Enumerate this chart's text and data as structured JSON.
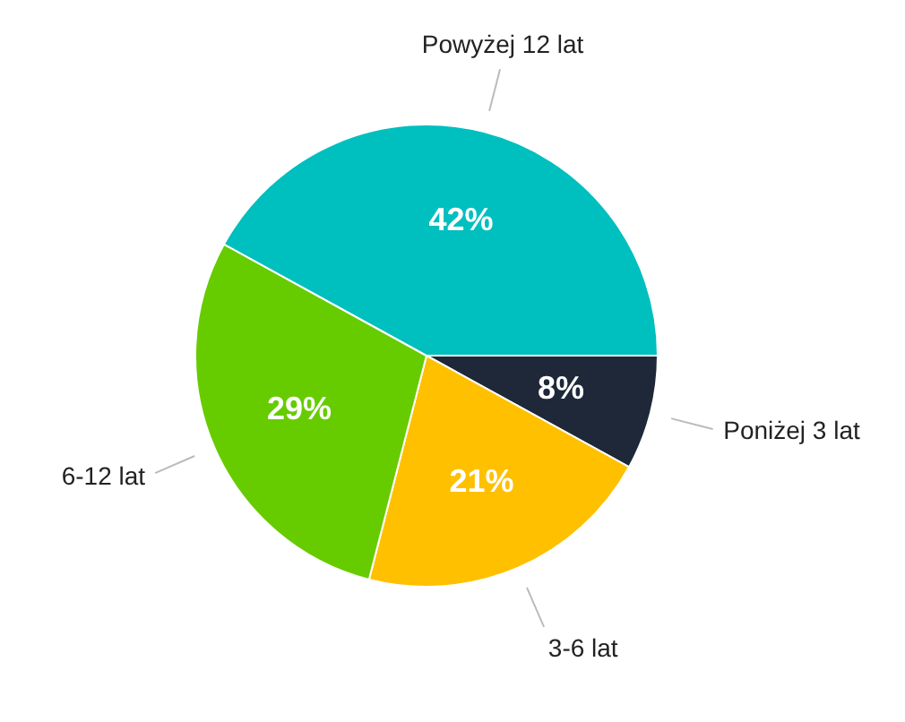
{
  "chart_data": {
    "type": "pie",
    "categories": [
      "Poniżej 3 lat",
      "3-6 lat",
      "6-12 lat",
      "Powyżej 12 lat"
    ],
    "values": [
      8,
      21,
      29,
      42
    ],
    "colors": [
      "#1e2839",
      "#ffc000",
      "#66cc00",
      "#00bfbf"
    ],
    "value_labels": [
      "8%",
      "21%",
      "29%",
      "42%"
    ],
    "legend": false
  }
}
